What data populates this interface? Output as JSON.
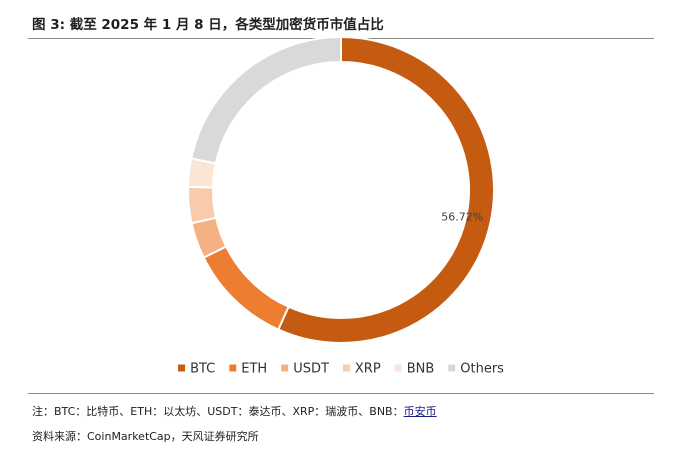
{
  "header": {
    "figure_title": "图 3:   截至 2025 年 1 月 8 日，各类型加密货币市值占比"
  },
  "chart_data": {
    "type": "pie",
    "donut": true,
    "start_angle_deg": 0,
    "direction": "clockwise",
    "legend_position": "bottom",
    "slices": [
      {
        "name": "BTC",
        "value": 56.72,
        "color": "#C55A11"
      },
      {
        "name": "ETH",
        "value": 11.0,
        "color": "#ED7D31"
      },
      {
        "name": "USDT",
        "value": 3.8,
        "color": "#F4B183"
      },
      {
        "name": "XRP",
        "value": 3.8,
        "color": "#F8CBAD"
      },
      {
        "name": "BNB",
        "value": 3.0,
        "color": "#FBE5D6"
      },
      {
        "name": "Others",
        "value": 21.68,
        "color": "#D9D9D9"
      }
    ],
    "data_labels": [
      {
        "text": "56.72%",
        "slice": "BTC"
      }
    ]
  },
  "footer": {
    "note_prefix": "注：BTC：比特币、ETH：以太坊、USDT：泰达币、XRP：瑞波币、BNB：",
    "note_link": "币安币",
    "source": "资料来源：CoinMarketCap，天风证券研究所"
  }
}
